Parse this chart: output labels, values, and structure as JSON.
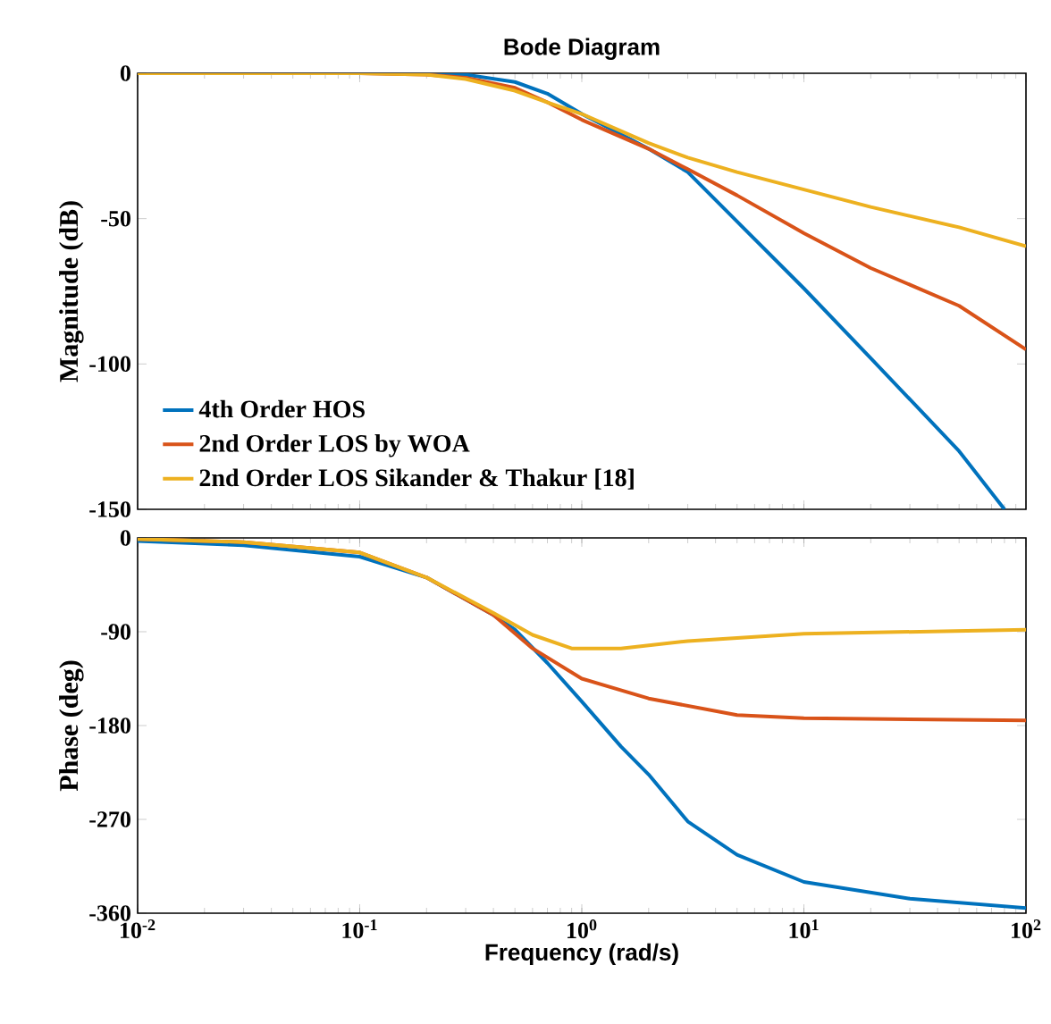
{
  "chart_data": [
    {
      "type": "line",
      "title": "Bode Diagram",
      "ylabel": "Magnitude (dB)",
      "log": "x",
      "xlim": [
        0.01,
        100
      ],
      "ylim": [
        -150,
        0
      ],
      "xticks": [
        {
          "value": 0.01,
          "label": null
        },
        {
          "value": 0.1,
          "label": null
        },
        {
          "value": 1,
          "label": null
        },
        {
          "value": 10,
          "label": null
        },
        {
          "value": 100,
          "label": null
        }
      ],
      "yticks": [
        -150,
        -100,
        -50,
        0
      ],
      "tick_labels": "y",
      "legend": "bottom left",
      "series": [
        {
          "name": "4th Order HOS",
          "color": "#0072bd",
          "x": [
            0.01,
            0.1,
            0.2,
            0.3,
            0.5,
            0.7,
            1,
            1.5,
            2,
            3,
            5,
            10,
            20,
            50,
            80
          ],
          "values": [
            0,
            0,
            0,
            -0.5,
            -3,
            -7,
            -14,
            -21,
            -26,
            -34,
            -51,
            -74,
            -98,
            -130,
            -150
          ]
        },
        {
          "name": "2nd Order LOS by WOA",
          "color": "#d95319",
          "x": [
            0.01,
            0.1,
            0.2,
            0.3,
            0.5,
            0.7,
            1,
            2,
            3,
            5,
            10,
            20,
            50,
            100
          ],
          "values": [
            0,
            0,
            -0.5,
            -1.5,
            -5,
            -10,
            -16,
            -26,
            -33,
            -42,
            -55,
            -67,
            -80,
            -95
          ]
        },
        {
          "name": "2nd Order LOS Sikander & Thakur [18]",
          "color": "#edb120",
          "x": [
            0.01,
            0.1,
            0.2,
            0.3,
            0.5,
            0.7,
            1,
            2,
            3,
            5,
            10,
            20,
            50,
            100
          ],
          "values": [
            0,
            0,
            -0.5,
            -2,
            -6,
            -10,
            -14,
            -24,
            -29,
            -34,
            -40,
            -46,
            -53,
            -59.5
          ]
        }
      ]
    },
    {
      "type": "line",
      "xlabel": "Frequency  (rad/s)",
      "ylabel": "Phase (deg)",
      "log": "x",
      "xlim": [
        0.01,
        100
      ],
      "ylim": [
        -360,
        0
      ],
      "xticks": [
        {
          "value": 0.01,
          "label": "10$^{-2}$"
        },
        {
          "value": 0.1,
          "label": "10$^{-1}$"
        },
        {
          "value": 1,
          "label": "10$^{0}$"
        },
        {
          "value": 10,
          "label": "10$^{1}$"
        },
        {
          "value": 100,
          "label": "10$^{2}$"
        }
      ],
      "yticks": [
        -360,
        -270,
        -180,
        -90,
        0
      ],
      "series": [
        {
          "color": "#0072bd",
          "x": [
            0.01,
            0.03,
            0.1,
            0.2,
            0.4,
            0.5,
            0.7,
            1,
            1.5,
            2,
            3,
            5,
            10,
            30,
            100
          ],
          "values": [
            -3,
            -7,
            -18,
            -38,
            -74,
            -88,
            -120,
            -157,
            -200,
            -227,
            -272,
            -304,
            -330,
            -346,
            -355
          ]
        },
        {
          "color": "#d95319",
          "x": [
            0.01,
            0.03,
            0.1,
            0.2,
            0.4,
            0.6,
            1,
            2,
            5,
            10,
            100
          ],
          "values": [
            -1,
            -4,
            -14,
            -38,
            -74,
            -106,
            -135,
            -154,
            -170,
            -173,
            -175
          ]
        },
        {
          "color": "#edb120",
          "x": [
            0.01,
            0.03,
            0.1,
            0.2,
            0.4,
            0.6,
            0.9,
            1.5,
            3,
            10,
            100
          ],
          "values": [
            -1,
            -4,
            -14,
            -38,
            -72,
            -93,
            -106,
            -106,
            -99,
            -92,
            -88
          ]
        }
      ]
    }
  ]
}
